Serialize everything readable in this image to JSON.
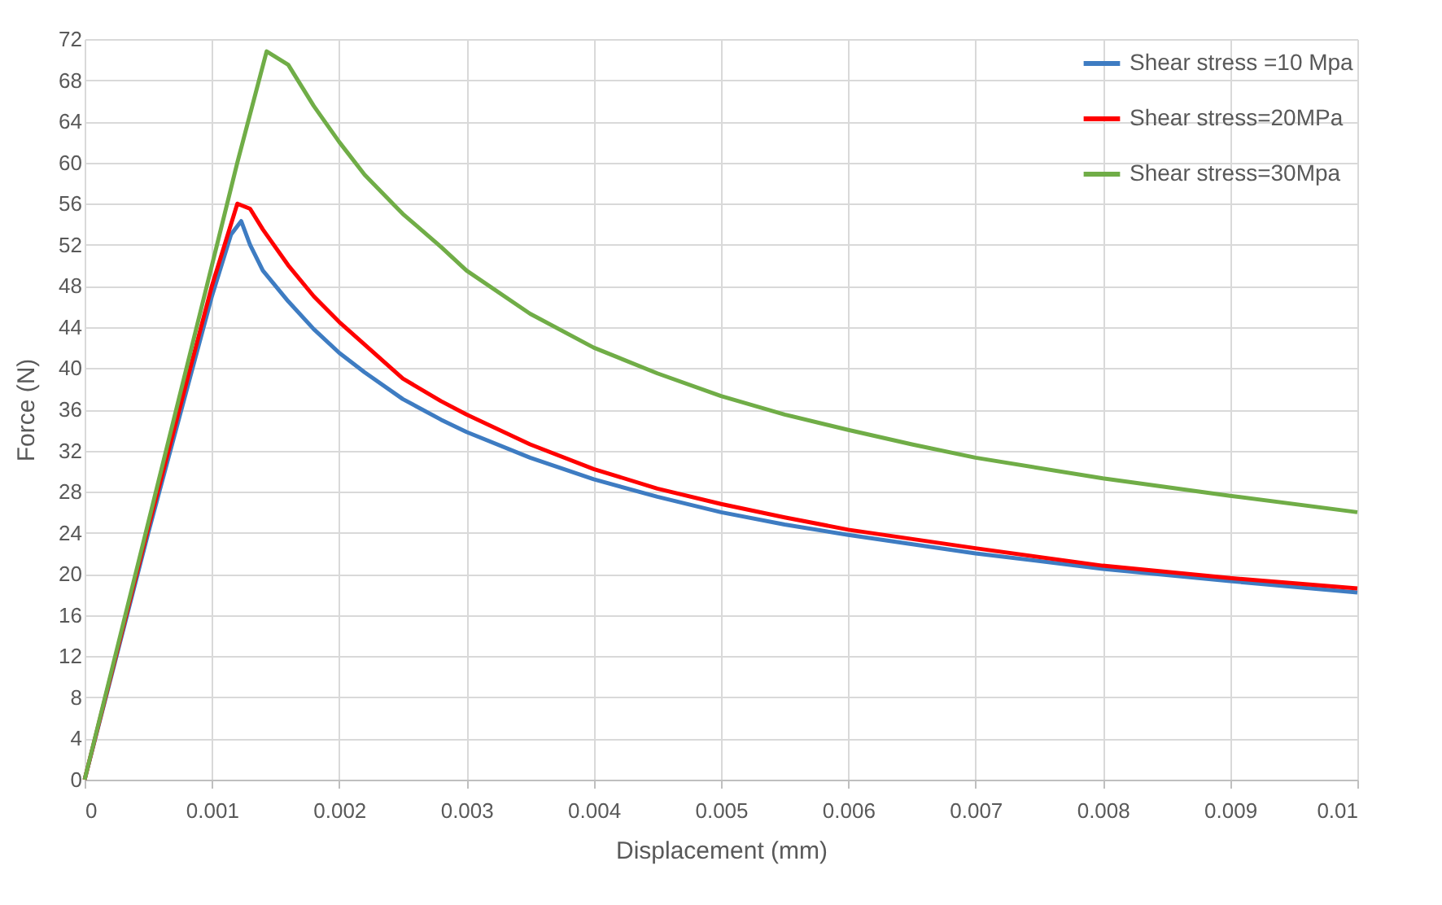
{
  "chart_data": {
    "type": "line",
    "xlabel": "Displacement (mm)",
    "ylabel": "Force (N)",
    "xlim": [
      0,
      0.01
    ],
    "xticks": [
      0,
      0.001,
      0.002,
      0.003,
      0.004,
      0.005,
      0.006,
      0.007,
      0.008,
      0.009,
      0.01
    ],
    "ylim": [
      0,
      72
    ],
    "yticks": [
      0,
      4,
      8,
      12,
      16,
      20,
      24,
      28,
      32,
      36,
      40,
      44,
      48,
      52,
      56,
      60,
      64,
      68,
      72
    ],
    "grid": true,
    "legend": "top right",
    "line_style": "solid",
    "series": [
      {
        "name": "Shear stress =10 Mpa",
        "color": "#3e7cc2",
        "x": [
          0,
          0.0005,
          0.001,
          0.00115,
          0.00123,
          0.0013,
          0.0014,
          0.0016,
          0.0018,
          0.002,
          0.0022,
          0.0025,
          0.0028,
          0.003,
          0.0035,
          0.004,
          0.0045,
          0.005,
          0.0055,
          0.006,
          0.007,
          0.008,
          0.009,
          0.01
        ],
        "values": [
          0,
          24,
          47,
          53,
          54.3,
          52,
          49.5,
          46.5,
          43.8,
          41.5,
          39.6,
          37,
          35,
          33.8,
          31.3,
          29.2,
          27.5,
          26,
          24.8,
          23.8,
          22,
          20.5,
          19.3,
          18.2
        ]
      },
      {
        "name": "Shear stress=20MPa",
        "color": "#ff0000",
        "x": [
          0,
          0.0005,
          0.001,
          0.0012,
          0.0013,
          0.0014,
          0.0016,
          0.0018,
          0.002,
          0.0022,
          0.0025,
          0.0028,
          0.003,
          0.0035,
          0.004,
          0.0045,
          0.005,
          0.0055,
          0.006,
          0.007,
          0.008,
          0.009,
          0.01
        ],
        "values": [
          0,
          24.5,
          48,
          56,
          55.5,
          53.5,
          50,
          47,
          44.5,
          42.3,
          39,
          36.8,
          35.5,
          32.6,
          30.2,
          28.3,
          26.8,
          25.5,
          24.3,
          22.5,
          20.8,
          19.6,
          18.6
        ]
      },
      {
        "name": "Shear stress=30Mpa",
        "color": "#70ad47",
        "x": [
          0,
          0.0005,
          0.001,
          0.0012,
          0.00143,
          0.0016,
          0.0018,
          0.002,
          0.0022,
          0.0025,
          0.0028,
          0.003,
          0.0035,
          0.004,
          0.0045,
          0.005,
          0.0055,
          0.006,
          0.0065,
          0.007,
          0.008,
          0.009,
          0.01
        ],
        "values": [
          0,
          25,
          50,
          60,
          70.8,
          69.5,
          65.5,
          62,
          58.8,
          55,
          51.8,
          49.5,
          45.3,
          42,
          39.5,
          37.3,
          35.5,
          34,
          32.6,
          31.3,
          29.3,
          27.6,
          26
        ]
      }
    ]
  }
}
